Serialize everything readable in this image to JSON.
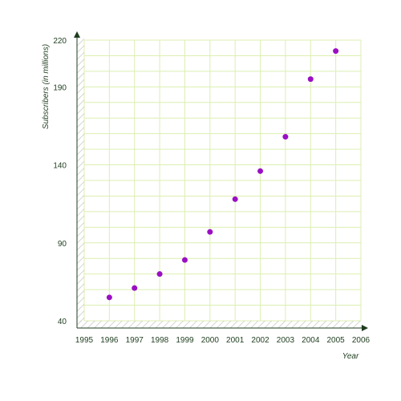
{
  "chart_data": {
    "type": "scatter",
    "title": "",
    "xlabel": "Year",
    "ylabel": "Subscribers (in millions)",
    "xlim": [
      1995,
      2006
    ],
    "ylim": [
      40,
      220
    ],
    "xticks": [
      "1995",
      "1996",
      "1997",
      "1998",
      "1999",
      "2000",
      "2001",
      "2002",
      "2003",
      "2004",
      "2005",
      "2006"
    ],
    "yticks": [
      "40",
      "90",
      "140",
      "190",
      "220"
    ],
    "grid": true,
    "points": [
      {
        "x": 1996,
        "y": 55
      },
      {
        "x": 1997,
        "y": 61
      },
      {
        "x": 1998,
        "y": 70
      },
      {
        "x": 1999,
        "y": 79
      },
      {
        "x": 2000,
        "y": 97
      },
      {
        "x": 2001,
        "y": 118
      },
      {
        "x": 2002,
        "y": 136
      },
      {
        "x": 2003,
        "y": 158
      },
      {
        "x": 2004,
        "y": 195
      },
      {
        "x": 2005,
        "y": 213
      }
    ],
    "colors": {
      "point": "#9b0fc4",
      "grid": "#dcefb0",
      "axis": "#1e3d1e",
      "hatch": "#cccccc"
    }
  }
}
